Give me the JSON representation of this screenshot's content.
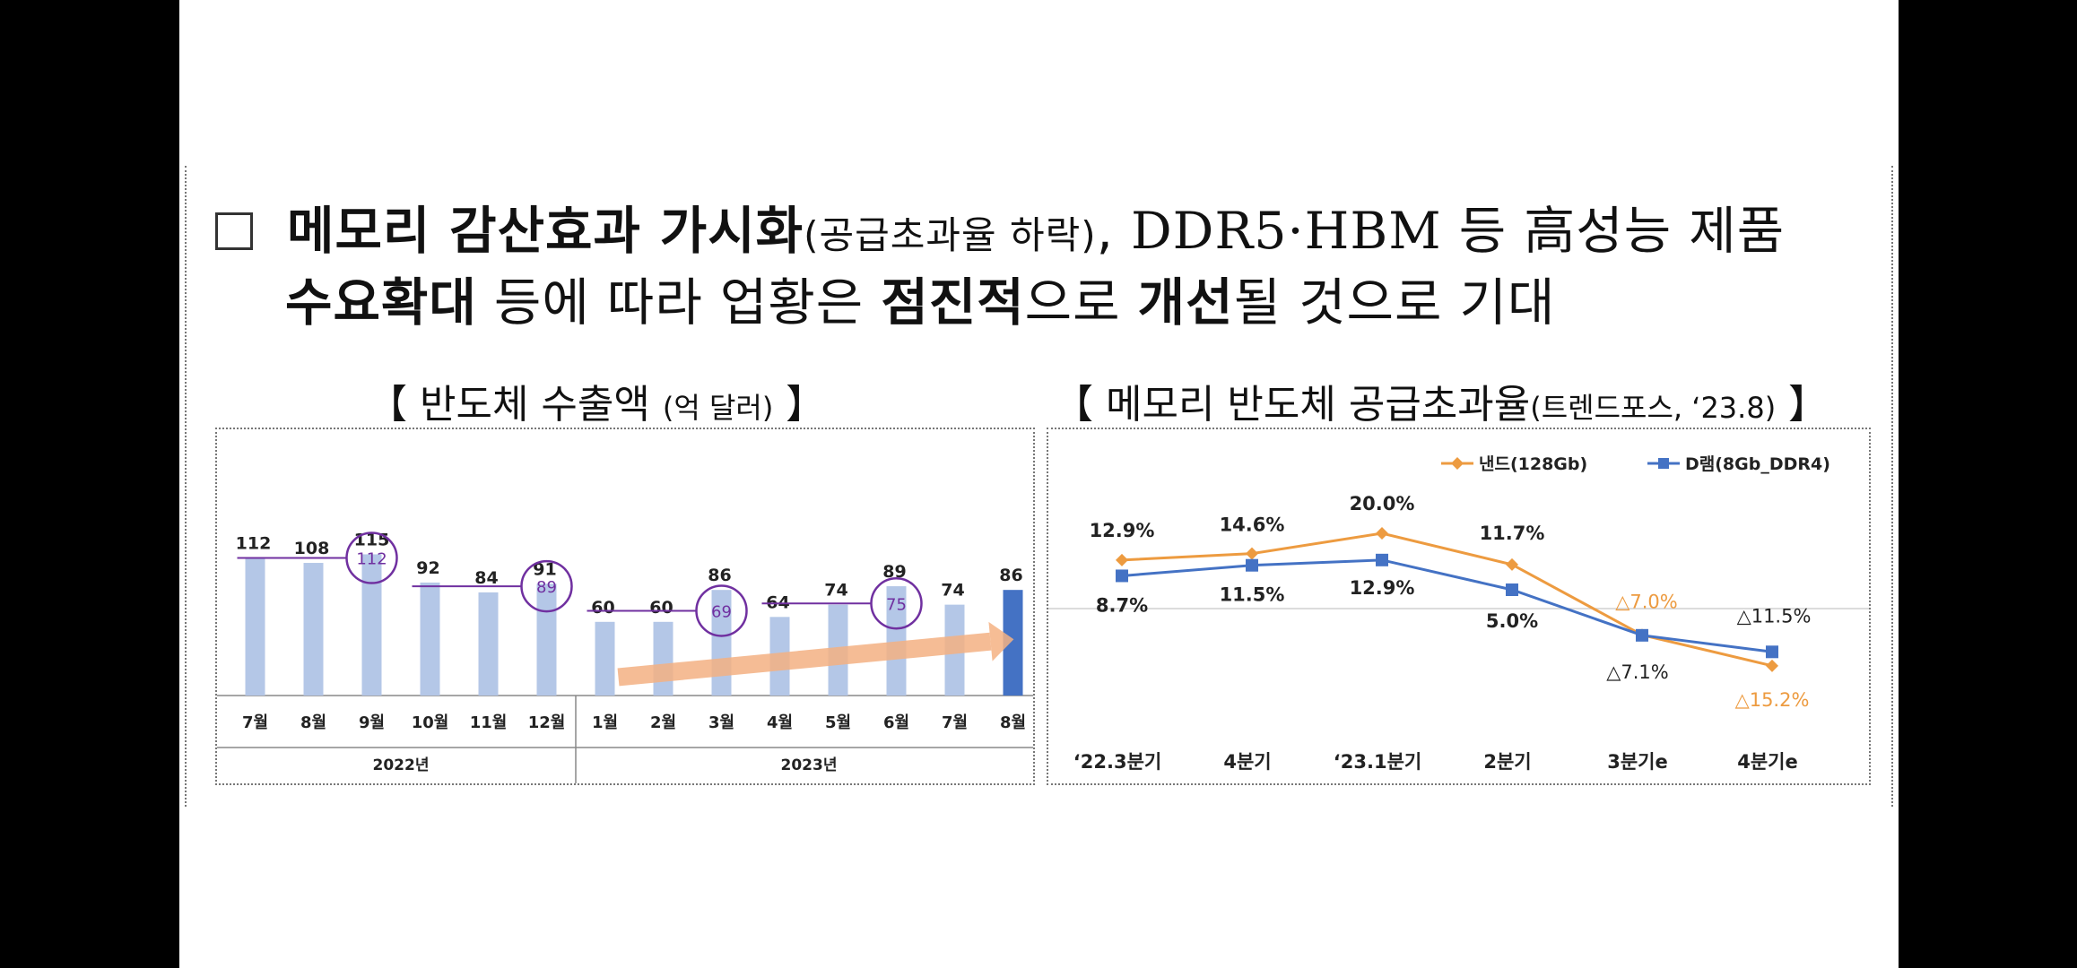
{
  "headline": {
    "line1_bold1": "메모리 감산효과 가시화",
    "line1_paren": "(공급초과율 하락)",
    "line1_sep": ", ",
    "line1_bold2": "DDR5·HBM 등 高성능 제품",
    "line2_bold1": "수요확대",
    "line2_text1": " 등에 따라 업황은 ",
    "line2_bold2": "점진적",
    "line2_text2": "으로 ",
    "line2_bold3": "개선",
    "line2_text3": "될 것으로 기대"
  },
  "left_title": {
    "open": "【 반도체 수출액 ",
    "unit": "(억 달러)",
    "close": " 】"
  },
  "right_title": {
    "open": "【 메모리 반도체 공급초과율",
    "source": "(트렌드포스, ‘23.8)",
    "close": " 】"
  },
  "colors": {
    "bar": "#b4c7e7",
    "bar_highlight": "#4472c4",
    "circle": "#7030a0",
    "arrow": "#f4b183",
    "nand": "#ed9b40",
    "dram": "#4472c4"
  },
  "chart_data": [
    {
      "type": "bar",
      "categories": [
        "7월",
        "8월",
        "9월",
        "10월",
        "11월",
        "12월",
        "1월",
        "2월",
        "3월",
        "4월",
        "5월",
        "6월",
        "7월",
        "8월"
      ],
      "groups": [
        {
          "label": "2022년",
          "count": 6
        },
        {
          "label": "2023년",
          "count": 8
        }
      ],
      "values": [
        112,
        108,
        115,
        92,
        84,
        91,
        60,
        60,
        86,
        64,
        74,
        89,
        74,
        86
      ],
      "highlight_index": 13,
      "circled": [
        {
          "index": 2,
          "value": 112
        },
        {
          "index": 5,
          "value": 89
        },
        {
          "index": 8,
          "value": 69
        },
        {
          "index": 11,
          "value": 75
        }
      ],
      "reference_lines": [
        {
          "from": 0,
          "to": 2,
          "value": 112
        },
        {
          "from": 3,
          "to": 5,
          "value": 89
        },
        {
          "from": 6,
          "to": 8,
          "value": 69
        },
        {
          "from": 9,
          "to": 11,
          "value": 75
        }
      ],
      "trend_arrow": "up",
      "ylim": [
        0,
        125
      ]
    },
    {
      "type": "line",
      "categories": [
        "‘22.3분기",
        "4분기",
        "‘23.1분기",
        "2분기",
        "3분기e",
        "4분기e"
      ],
      "series": [
        {
          "name": "낸드(128Gb)",
          "values": [
            12.9,
            14.6,
            20.0,
            11.7,
            -7.0,
            -15.2
          ],
          "labels": [
            "12.9%",
            "14.6%",
            "20.0%",
            "11.7%",
            "△7.0%",
            "△15.2%"
          ]
        },
        {
          "name": "D램(8Gb_DDR4)",
          "values": [
            8.7,
            11.5,
            12.9,
            5.0,
            -7.1,
            -11.5
          ],
          "labels": [
            "8.7%",
            "11.5%",
            "12.9%",
            "5.0%",
            "△7.1%",
            "△11.5%"
          ]
        }
      ],
      "ylim": [
        -20,
        25
      ],
      "legend": "top-right",
      "baseline": 0
    }
  ]
}
